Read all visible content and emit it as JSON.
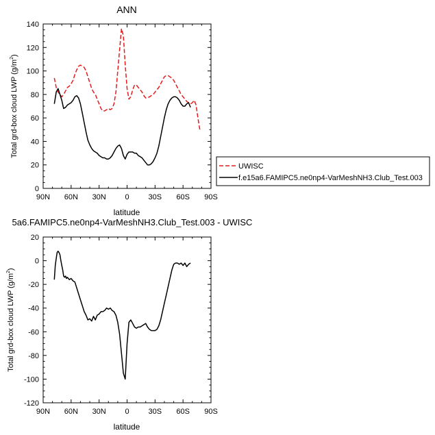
{
  "chart_data": [
    {
      "type": "line",
      "title": "ANN",
      "xlabel": "latitude",
      "ylabel": "Total grd-box cloud LWP (g/m",
      "ylabel_sup": "2",
      "ylabel_close": ")",
      "xlim": [
        90,
        -90
      ],
      "ylim": [
        0,
        140
      ],
      "xticks": [
        90,
        60,
        30,
        0,
        -30,
        -60,
        -90
      ],
      "xtick_labels": [
        "90N",
        "60N",
        "30N",
        "0",
        "30S",
        "60S",
        "90S"
      ],
      "yticks": [
        0,
        20,
        40,
        60,
        80,
        100,
        120,
        140
      ],
      "ytick_labels": [
        "0",
        "20",
        "40",
        "60",
        "80",
        "100",
        "120",
        "140"
      ],
      "legend_position": "right",
      "series": [
        {
          "name": "UWISC",
          "color": "#e41a1c",
          "dashed": true,
          "x": [
            78,
            76,
            74,
            72,
            70,
            68,
            66,
            64,
            62,
            60,
            58,
            56,
            54,
            52,
            50,
            48,
            46,
            44,
            42,
            40,
            38,
            36,
            34,
            32,
            30,
            28,
            26,
            24,
            22,
            20,
            18,
            16,
            14,
            12,
            10,
            8,
            6,
            4,
            2,
            0,
            -2,
            -4,
            -6,
            -8,
            -10,
            -12,
            -14,
            -16,
            -18,
            -20,
            -22,
            -24,
            -26,
            -28,
            -30,
            -32,
            -34,
            -36,
            -38,
            -40,
            -42,
            -44,
            -46,
            -48,
            -50,
            -52,
            -54,
            -56,
            -58,
            -60,
            -62,
            -64,
            -66,
            -68,
            -70,
            -72,
            -74,
            -76,
            -78
          ],
          "y": [
            94,
            86,
            82,
            80,
            78,
            80,
            83,
            86,
            87,
            89,
            92,
            97,
            101,
            104,
            105,
            104,
            103,
            100,
            95,
            90,
            85,
            82,
            80,
            76,
            72,
            68,
            66,
            66,
            67,
            68,
            67,
            68,
            72,
            82,
            100,
            118,
            136,
            130,
            105,
            85,
            76,
            78,
            84,
            88,
            88,
            86,
            84,
            82,
            79,
            77,
            77,
            78,
            79,
            80,
            82,
            84,
            86,
            89,
            92,
            95,
            96,
            96,
            95,
            94,
            92,
            89,
            86,
            83,
            80,
            78,
            76,
            74,
            73,
            72,
            73,
            75,
            71,
            60,
            50
          ]
        },
        {
          "name": "f.e15a6.FAMIPC5.ne0np4-VarMeshNH3.Club_Test.003",
          "color": "#000000",
          "dashed": false,
          "x": [
            78,
            76,
            74,
            72,
            70,
            68,
            66,
            64,
            62,
            60,
            58,
            56,
            54,
            52,
            50,
            48,
            46,
            44,
            42,
            40,
            38,
            36,
            34,
            32,
            30,
            28,
            26,
            24,
            22,
            20,
            18,
            16,
            14,
            12,
            10,
            8,
            6,
            4,
            2,
            0,
            -2,
            -4,
            -6,
            -8,
            -10,
            -12,
            -14,
            -16,
            -18,
            -20,
            -22,
            -24,
            -26,
            -28,
            -30,
            -32,
            -34,
            -36,
            -38,
            -40,
            -42,
            -44,
            -46,
            -48,
            -50,
            -52,
            -54,
            -56,
            -58,
            -60,
            -62,
            -64,
            -66,
            -68
          ],
          "y": [
            72,
            82,
            85,
            80,
            75,
            68,
            69,
            71,
            72,
            73,
            75,
            78,
            79,
            77,
            72,
            64,
            56,
            48,
            41,
            37,
            34,
            32,
            31,
            30,
            28,
            27,
            26,
            26,
            25,
            25,
            26,
            28,
            31,
            34,
            36,
            37,
            34,
            28,
            25,
            29,
            31,
            31,
            31,
            30,
            30,
            28,
            27,
            26,
            24,
            22,
            20,
            20,
            21,
            23,
            26,
            30,
            36,
            44,
            52,
            60,
            67,
            72,
            75,
            77,
            78,
            78,
            77,
            75,
            72,
            70,
            70,
            72,
            73,
            69
          ]
        }
      ]
    },
    {
      "type": "line",
      "title": "5a6.FAMIPC5.ne0np4-VarMeshNH3.Club_Test.003 - UWISC",
      "xlabel": "latitude",
      "ylabel": "Total grd-box cloud LWP (g/m",
      "ylabel_sup": "2",
      "ylabel_close": ")",
      "xlim": [
        90,
        -90
      ],
      "ylim": [
        -120,
        20
      ],
      "xticks": [
        90,
        60,
        30,
        0,
        -30,
        -60,
        -90
      ],
      "xtick_labels": [
        "90N",
        "60N",
        "30N",
        "0",
        "30S",
        "60S",
        "90S"
      ],
      "yticks": [
        -120,
        -100,
        -80,
        -60,
        -40,
        -20,
        0,
        20
      ],
      "ytick_labels": [
        "-120",
        "-100",
        "-80",
        "-60",
        "-40",
        "-20",
        "0",
        "20"
      ],
      "series": [
        {
          "color": "#000000",
          "dashed": false,
          "x": [
            78,
            77,
            76,
            75,
            74,
            73,
            72,
            71,
            70,
            69,
            68,
            67,
            66,
            65,
            64,
            63,
            62,
            60,
            58,
            56,
            54,
            52,
            50,
            48,
            46,
            44,
            42,
            40,
            38,
            36,
            34,
            32,
            30,
            28,
            26,
            24,
            22,
            20,
            18,
            16,
            14,
            12,
            10,
            8,
            6,
            4,
            2,
            0,
            -2,
            -4,
            -6,
            -8,
            -10,
            -12,
            -14,
            -16,
            -18,
            -20,
            -22,
            -24,
            -26,
            -28,
            -30,
            -32,
            -34,
            -36,
            -38,
            -40,
            -42,
            -44,
            -46,
            -48,
            -50,
            -52,
            -54,
            -56,
            -58,
            -60,
            -62,
            -64,
            -66,
            -68
          ],
          "y": [
            -16,
            -4,
            2,
            7,
            8,
            7,
            5,
            0,
            -4,
            -8,
            -13,
            -14,
            -13,
            -15,
            -14,
            -15,
            -16,
            -15,
            -17,
            -18,
            -23,
            -28,
            -33,
            -38,
            -43,
            -46,
            -50,
            -49,
            -51,
            -47,
            -50,
            -46,
            -45,
            -43,
            -43,
            -42,
            -40,
            -41,
            -40,
            -42,
            -43,
            -46,
            -52,
            -62,
            -78,
            -95,
            -100,
            -70,
            -52,
            -50,
            -53,
            -56,
            -57,
            -56,
            -56,
            -55,
            -54,
            -53,
            -56,
            -58,
            -59,
            -59,
            -59,
            -58,
            -55,
            -50,
            -43,
            -36,
            -29,
            -22,
            -15,
            -8,
            -3,
            -2,
            -2,
            -3,
            -2,
            -4,
            -2,
            -5,
            -3,
            -2
          ]
        }
      ]
    }
  ]
}
